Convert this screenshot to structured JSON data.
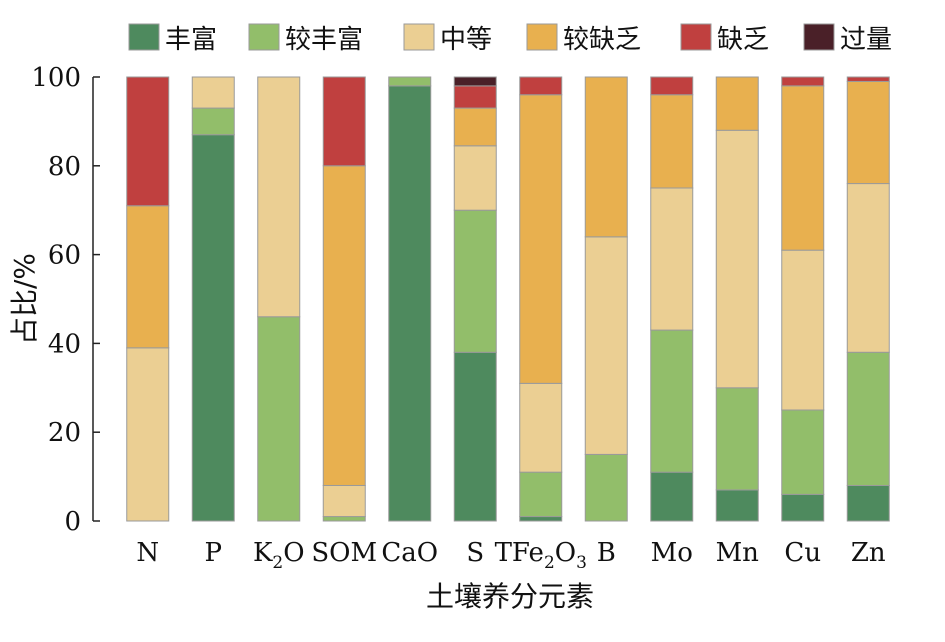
{
  "chart_data": {
    "type": "bar",
    "stacked": true,
    "title": "",
    "xlabel": "土壤养分元素",
    "ylabel": "占比/%",
    "ylim": [
      0,
      100
    ],
    "yticks": [
      "0",
      "20",
      "40",
      "60",
      "80",
      "100"
    ],
    "grid": false,
    "legend_position": "top",
    "categories": [
      {
        "parts": [
          {
            "t": "N"
          }
        ]
      },
      {
        "parts": [
          {
            "t": "P"
          }
        ]
      },
      {
        "parts": [
          {
            "t": "K"
          },
          {
            "t": "2",
            "sub": true
          },
          {
            "t": "O"
          }
        ]
      },
      {
        "parts": [
          {
            "t": "SOM"
          }
        ]
      },
      {
        "parts": [
          {
            "t": "CaO"
          }
        ]
      },
      {
        "parts": [
          {
            "t": "S"
          }
        ]
      },
      {
        "parts": [
          {
            "t": "TFe"
          },
          {
            "t": "2",
            "sub": true
          },
          {
            "t": "O"
          },
          {
            "t": "3",
            "sub": true
          }
        ]
      },
      {
        "parts": [
          {
            "t": "B"
          }
        ]
      },
      {
        "parts": [
          {
            "t": "Mo"
          }
        ]
      },
      {
        "parts": [
          {
            "t": "Mn"
          }
        ]
      },
      {
        "parts": [
          {
            "t": "Cu"
          }
        ]
      },
      {
        "parts": [
          {
            "t": "Zn"
          }
        ]
      }
    ],
    "series": [
      {
        "name": "丰富",
        "color": "#4e8a5e",
        "values": [
          0,
          87,
          0,
          0,
          98,
          38,
          1,
          0,
          11,
          7,
          6,
          8
        ]
      },
      {
        "name": "较丰富",
        "color": "#92be6a",
        "values": [
          0,
          6,
          46,
          1,
          2,
          32,
          10,
          15,
          32,
          23,
          19,
          30
        ]
      },
      {
        "name": "中等",
        "color": "#ebcf93",
        "values": [
          39,
          7,
          54,
          7,
          0,
          14.5,
          20,
          49,
          32,
          58,
          36,
          38
        ]
      },
      {
        "name": "较缺乏",
        "color": "#e8b04f",
        "values": [
          32,
          0,
          0,
          72,
          0,
          8.5,
          65,
          36,
          21,
          12,
          37,
          23
        ]
      },
      {
        "name": "缺乏",
        "color": "#c0403f",
        "values": [
          29,
          0,
          0,
          20,
          0,
          5,
          4,
          0,
          4,
          0,
          2,
          1
        ]
      },
      {
        "name": "过量",
        "color": "#4a2028",
        "values": [
          0,
          0,
          0,
          0,
          0,
          2,
          0,
          0,
          0,
          0,
          0,
          0
        ]
      }
    ]
  }
}
